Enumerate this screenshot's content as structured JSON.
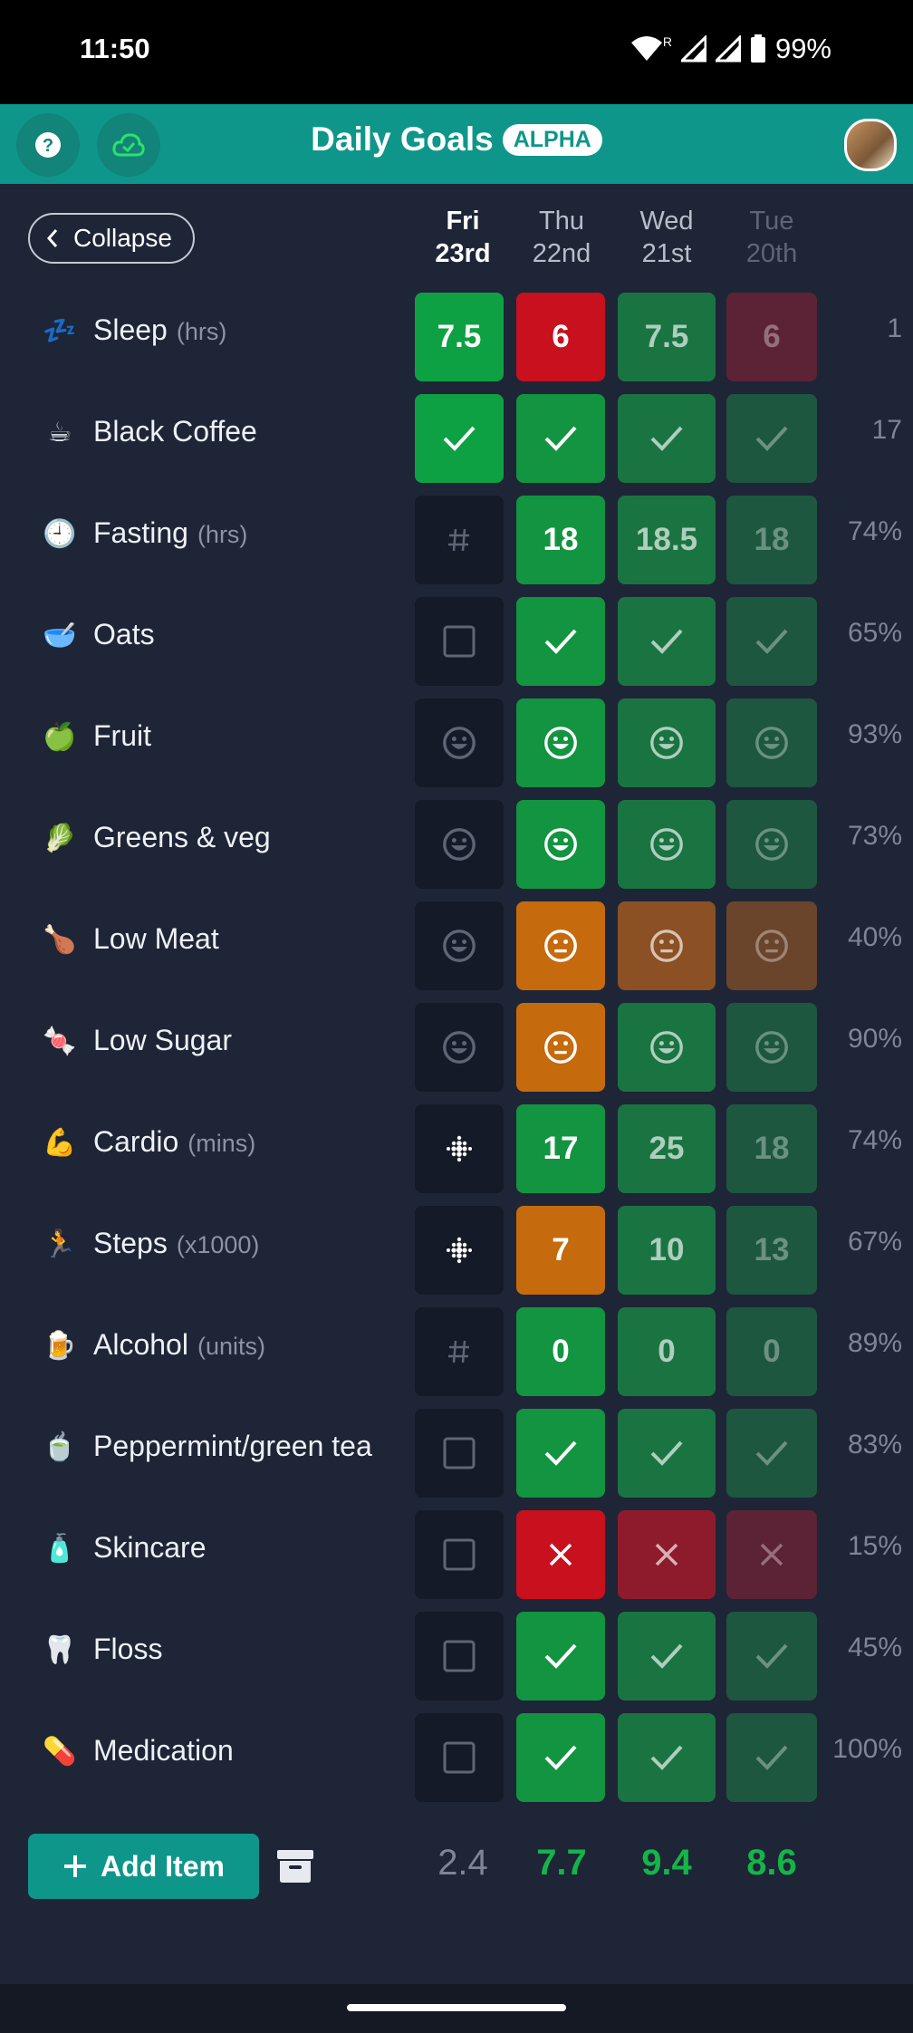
{
  "status_bar": {
    "time": "11:50",
    "battery": "99%",
    "roaming": "R"
  },
  "app": {
    "title": "Daily Goals",
    "badge": "ALPHA"
  },
  "header": {
    "collapse_label": "Collapse",
    "days": [
      {
        "name": "Fri",
        "date": "23rd",
        "style": "today"
      },
      {
        "name": "Thu",
        "date": "22nd",
        "style": "normal"
      },
      {
        "name": "Wed",
        "date": "21st",
        "style": "normal"
      },
      {
        "name": "Tue",
        "date": "20th",
        "style": "dim"
      }
    ]
  },
  "colors": {
    "bright_green": "#0ea143",
    "green": "#139440",
    "mid_green": "#1a7442",
    "dim_green": "#1d5740",
    "red": "#c8101e",
    "mid_red": "#8e1b2c",
    "dim_red": "#5c2236",
    "orange": "#c66a0e",
    "mid_orange": "#8b5023",
    "dim_orange": "#6a442b",
    "empty": "#141a27",
    "teal": "#0f968a"
  },
  "goals": [
    {
      "emoji": "💤",
      "icon": "sleep-icon",
      "label": "Sleep",
      "unit": "(hrs)",
      "stat": "1",
      "cells": [
        {
          "type": "num",
          "value": "7.5",
          "color": "bright_green"
        },
        {
          "type": "num",
          "value": "6",
          "color": "red"
        },
        {
          "type": "num",
          "value": "7.5",
          "color": "mid_green"
        },
        {
          "type": "num",
          "value": "6",
          "color": "dim_red"
        }
      ]
    },
    {
      "emoji": "☕",
      "icon": "coffee-icon",
      "label": "Black Coffee",
      "unit": "",
      "stat": "17",
      "cells": [
        {
          "type": "check",
          "color": "bright_green"
        },
        {
          "type": "check",
          "color": "green"
        },
        {
          "type": "check",
          "color": "mid_green"
        },
        {
          "type": "check",
          "color": "dim_green"
        }
      ]
    },
    {
      "emoji": "🕘",
      "icon": "clock-icon",
      "label": "Fasting",
      "unit": "(hrs)",
      "stat": "74%",
      "cells": [
        {
          "type": "hash",
          "color": "empty"
        },
        {
          "type": "num",
          "value": "18",
          "color": "green"
        },
        {
          "type": "num",
          "value": "18.5",
          "color": "mid_green"
        },
        {
          "type": "num",
          "value": "18",
          "color": "dim_green"
        }
      ]
    },
    {
      "emoji": "🥣",
      "icon": "bowl-icon",
      "label": "Oats",
      "unit": "",
      "stat": "65%",
      "cells": [
        {
          "type": "box",
          "color": "empty"
        },
        {
          "type": "check",
          "color": "green"
        },
        {
          "type": "check",
          "color": "mid_green"
        },
        {
          "type": "check",
          "color": "dim_green"
        }
      ]
    },
    {
      "emoji": "🍏",
      "icon": "apple-icon",
      "label": "Fruit",
      "unit": "",
      "stat": "93%",
      "cells": [
        {
          "type": "face",
          "mood": "happy",
          "color": "empty"
        },
        {
          "type": "face",
          "mood": "happy",
          "color": "green"
        },
        {
          "type": "face",
          "mood": "happy",
          "color": "mid_green"
        },
        {
          "type": "face",
          "mood": "happy",
          "color": "dim_green"
        }
      ]
    },
    {
      "emoji": "🥬",
      "icon": "leafy-greens-icon",
      "label": "Greens & veg",
      "unit": "",
      "stat": "73%",
      "cells": [
        {
          "type": "face",
          "mood": "happy",
          "color": "empty"
        },
        {
          "type": "face",
          "mood": "happy",
          "color": "green"
        },
        {
          "type": "face",
          "mood": "happy",
          "color": "mid_green"
        },
        {
          "type": "face",
          "mood": "happy",
          "color": "dim_green"
        }
      ]
    },
    {
      "emoji": "🍗",
      "icon": "drumstick-icon",
      "label": "Low Meat",
      "unit": "",
      "stat": "40%",
      "cells": [
        {
          "type": "face",
          "mood": "happy",
          "color": "empty"
        },
        {
          "type": "face",
          "mood": "neutral",
          "color": "orange"
        },
        {
          "type": "face",
          "mood": "neutral",
          "color": "mid_orange"
        },
        {
          "type": "face",
          "mood": "neutral",
          "color": "dim_orange"
        }
      ]
    },
    {
      "emoji": "🍬",
      "icon": "candy-icon",
      "label": "Low Sugar",
      "unit": "",
      "stat": "90%",
      "cells": [
        {
          "type": "face",
          "mood": "happy",
          "color": "empty"
        },
        {
          "type": "face",
          "mood": "neutral",
          "color": "orange"
        },
        {
          "type": "face",
          "mood": "happy",
          "color": "mid_green"
        },
        {
          "type": "face",
          "mood": "happy",
          "color": "dim_green"
        }
      ]
    },
    {
      "emoji": "💪",
      "icon": "flexed-biceps-icon",
      "label": "Cardio",
      "unit": "(mins)",
      "stat": "74%",
      "cells": [
        {
          "type": "fitbit",
          "color": "empty"
        },
        {
          "type": "num",
          "value": "17",
          "color": "green"
        },
        {
          "type": "num",
          "value": "25",
          "color": "mid_green"
        },
        {
          "type": "num",
          "value": "18",
          "color": "dim_green"
        }
      ]
    },
    {
      "emoji": "🏃",
      "icon": "runner-icon",
      "label": "Steps",
      "unit": "(x1000)",
      "stat": "67%",
      "cells": [
        {
          "type": "fitbit",
          "color": "empty"
        },
        {
          "type": "num",
          "value": "7",
          "color": "orange"
        },
        {
          "type": "num",
          "value": "10",
          "color": "mid_green"
        },
        {
          "type": "num",
          "value": "13",
          "color": "dim_green"
        }
      ]
    },
    {
      "emoji": "🍺",
      "icon": "beer-icon",
      "label": "Alcohol",
      "unit": "(units)",
      "stat": "89%",
      "cells": [
        {
          "type": "hash",
          "color": "empty"
        },
        {
          "type": "num",
          "value": "0",
          "color": "green"
        },
        {
          "type": "num",
          "value": "0",
          "color": "mid_green"
        },
        {
          "type": "num",
          "value": "0",
          "color": "dim_green"
        }
      ]
    },
    {
      "emoji": "🍵",
      "icon": "tea-icon",
      "label": "Peppermint/green tea",
      "unit": "",
      "stat": "83%",
      "cells": [
        {
          "type": "box",
          "color": "empty"
        },
        {
          "type": "check",
          "color": "green"
        },
        {
          "type": "check",
          "color": "mid_green"
        },
        {
          "type": "check",
          "color": "dim_green"
        }
      ]
    },
    {
      "emoji": "🧴",
      "icon": "lotion-icon",
      "label": "Skincare",
      "unit": "",
      "stat": "15%",
      "cells": [
        {
          "type": "box",
          "color": "empty"
        },
        {
          "type": "cross",
          "color": "red"
        },
        {
          "type": "cross",
          "color": "mid_red"
        },
        {
          "type": "cross",
          "color": "dim_red"
        }
      ]
    },
    {
      "emoji": "🦷",
      "icon": "tooth-icon",
      "label": "Floss",
      "unit": "",
      "stat": "45%",
      "cells": [
        {
          "type": "box",
          "color": "empty"
        },
        {
          "type": "check",
          "color": "green"
        },
        {
          "type": "check",
          "color": "mid_green"
        },
        {
          "type": "check",
          "color": "dim_green"
        }
      ]
    },
    {
      "emoji": "💊",
      "icon": "pill-icon",
      "label": "Medication",
      "unit": "",
      "stat": "100%",
      "cells": [
        {
          "type": "box",
          "color": "empty"
        },
        {
          "type": "check",
          "color": "green"
        },
        {
          "type": "check",
          "color": "mid_green"
        },
        {
          "type": "check",
          "color": "dim_green"
        }
      ]
    }
  ],
  "footer": {
    "add_label": "Add Item",
    "scores": [
      {
        "value": "2.4",
        "style": "muted"
      },
      {
        "value": "7.7",
        "style": "good"
      },
      {
        "value": "9.4",
        "style": "good"
      },
      {
        "value": "8.6",
        "style": "good"
      }
    ]
  }
}
